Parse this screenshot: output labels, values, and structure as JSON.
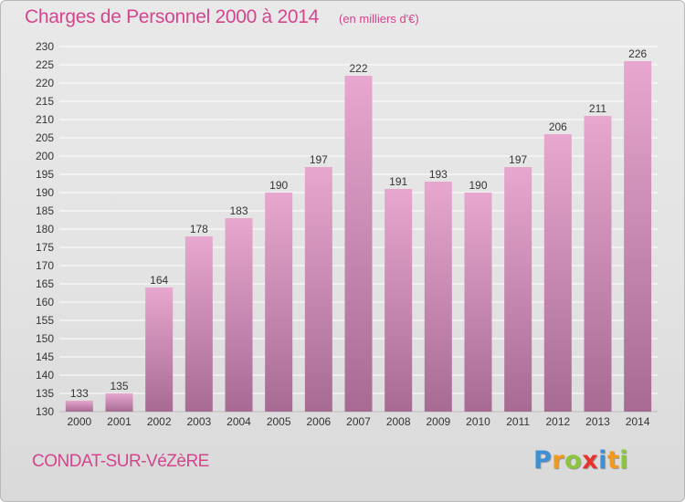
{
  "title": "Charges de Personnel 2000 à 2014",
  "subtitle": "(en milliers d'€)",
  "place": "CONDAT-SUR-VéZèRE",
  "brand": {
    "letters": [
      {
        "ch": "P",
        "color": "#3d8fd6"
      },
      {
        "ch": "r",
        "color": "#f19a1f"
      },
      {
        "ch": "o",
        "color": "#8cc63f"
      },
      {
        "ch": "x",
        "color": "#e8322d"
      },
      {
        "ch": "i",
        "color": "#3d8fd6"
      },
      {
        "ch": "t",
        "color": "#f19a1f"
      },
      {
        "ch": "i",
        "color": "#8cc63f"
      }
    ]
  },
  "colors": {
    "accent": "#d4458e",
    "bar_top": "#e7a7cf",
    "bar_bottom": "#a76b93",
    "grid": "#ffffff",
    "axis_text": "#333333"
  },
  "chart_data": {
    "type": "bar",
    "categories": [
      "2000",
      "2001",
      "2002",
      "2003",
      "2004",
      "2005",
      "2006",
      "2007",
      "2008",
      "2009",
      "2010",
      "2011",
      "2012",
      "2013",
      "2014"
    ],
    "values": [
      133,
      135,
      164,
      178,
      183,
      190,
      197,
      222,
      191,
      193,
      190,
      197,
      206,
      211,
      226
    ],
    "title": "Charges de Personnel 2000 à 2014",
    "xlabel": "",
    "ylabel": "",
    "ylim": [
      130,
      230
    ],
    "yticks": [
      130,
      135,
      140,
      145,
      150,
      155,
      160,
      165,
      170,
      175,
      180,
      185,
      190,
      195,
      200,
      205,
      210,
      215,
      220,
      225,
      230
    ],
    "grid": true
  }
}
